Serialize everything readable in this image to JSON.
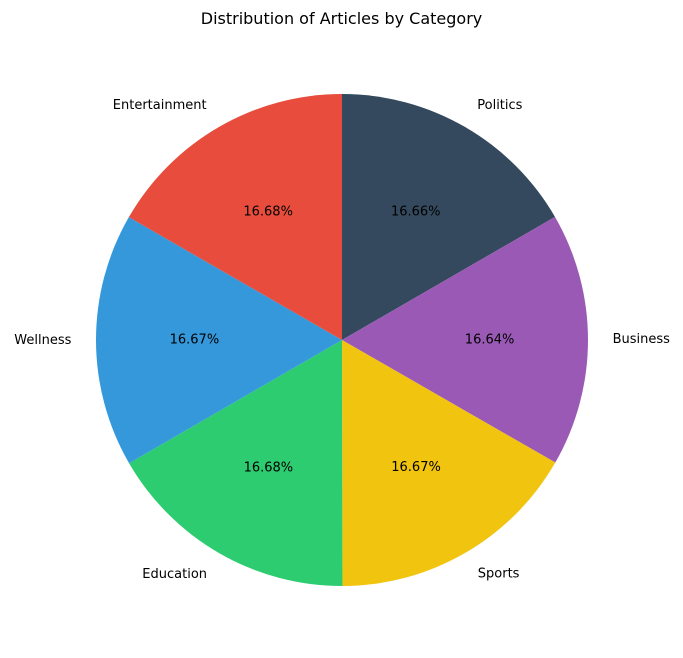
{
  "chart_data": {
    "type": "pie",
    "title": "Distribution of Articles by Category",
    "start_angle_deg": 90,
    "direction": "clockwise",
    "slices": [
      {
        "label": "Politics",
        "value": 16.66,
        "pct_label": "16.66%",
        "color": "#34495e"
      },
      {
        "label": "Business",
        "value": 16.64,
        "pct_label": "16.64%",
        "color": "#9b59b6"
      },
      {
        "label": "Sports",
        "value": 16.67,
        "pct_label": "16.67%",
        "color": "#f1c40f"
      },
      {
        "label": "Education",
        "value": 16.68,
        "pct_label": "16.68%",
        "color": "#2ecc71"
      },
      {
        "label": "Wellness",
        "value": 16.67,
        "pct_label": "16.67%",
        "color": "#3498db"
      },
      {
        "label": "Entertainment",
        "value": 16.68,
        "pct_label": "16.68%",
        "color": "#e74c3c"
      }
    ]
  }
}
